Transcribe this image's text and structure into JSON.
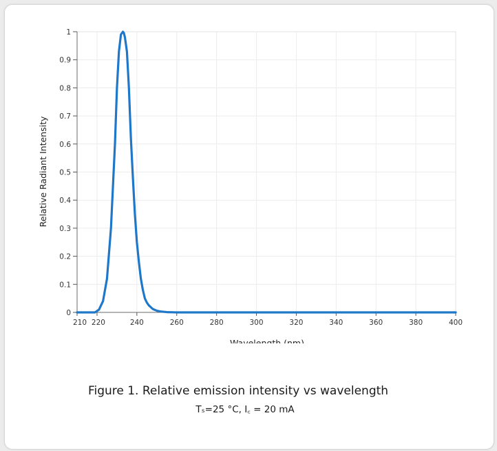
{
  "chart_data": {
    "type": "line",
    "title": "",
    "xlabel": "Wavelength (nm)",
    "ylabel": "Relative Radiant Intensity",
    "xlim": [
      210,
      400
    ],
    "ylim": [
      0,
      1
    ],
    "x_ticks": [
      "210",
      "220",
      "240",
      "260",
      "280",
      "300",
      "320",
      "340",
      "360",
      "380",
      "400"
    ],
    "y_ticks": [
      "0",
      "0.1",
      "0.2",
      "0.3",
      "0.4",
      "0.5",
      "0.6",
      "0.7",
      "0.8",
      "0.9",
      "1"
    ],
    "grid": true,
    "series": [
      {
        "color": "#1f77c9",
        "x": [
          210,
          219,
          221,
          223,
          225,
          227,
          229,
          230,
          231,
          232,
          233,
          233.5,
          234,
          235,
          236,
          237,
          238,
          239,
          240,
          241,
          242,
          243,
          244,
          245,
          246,
          248,
          250,
          252,
          255,
          260,
          270,
          290,
          320,
          350,
          380,
          400
        ],
        "y": [
          0.0,
          0.0,
          0.01,
          0.04,
          0.12,
          0.3,
          0.6,
          0.8,
          0.93,
          0.99,
          1.0,
          0.995,
          0.98,
          0.93,
          0.8,
          0.62,
          0.48,
          0.35,
          0.25,
          0.18,
          0.12,
          0.08,
          0.05,
          0.035,
          0.025,
          0.012,
          0.006,
          0.003,
          0.001,
          0.0,
          0.0,
          0.0,
          0.0,
          0.0,
          0.0,
          0.0
        ]
      }
    ]
  },
  "caption": {
    "title": "Figure 1. Relative emission intensity vs wavelength",
    "subtitle": "Tₛ=25 °C, I꜀ = 20 mA"
  }
}
